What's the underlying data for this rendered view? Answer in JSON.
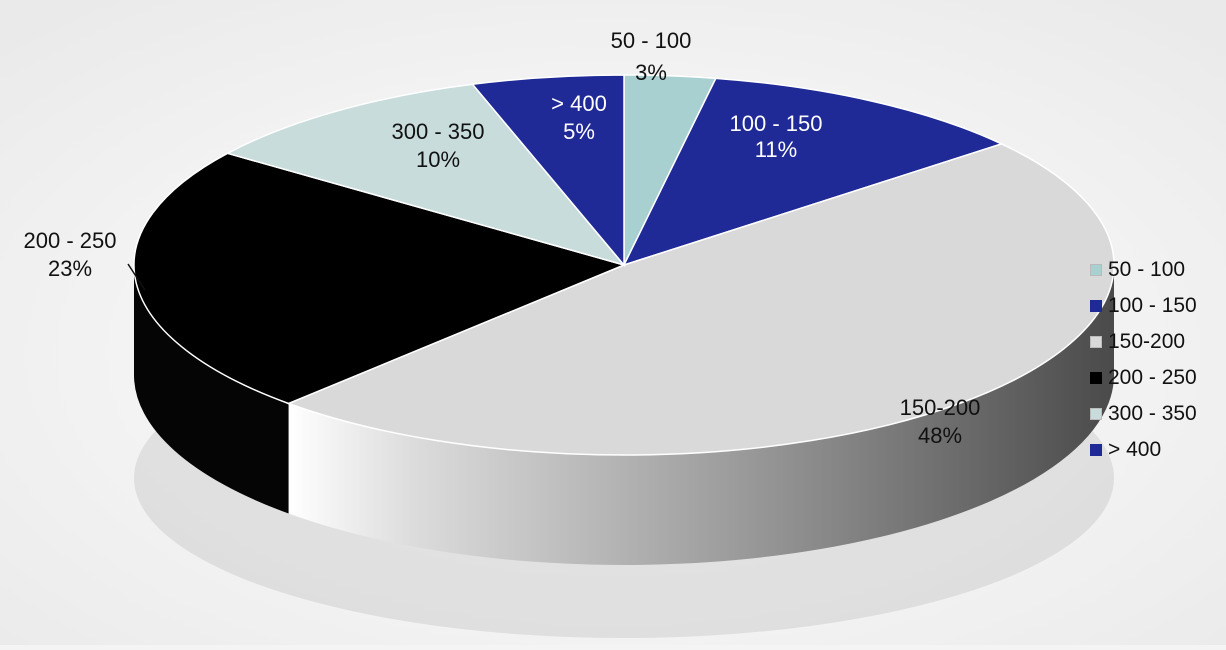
{
  "chart_data": {
    "type": "pie",
    "title": "",
    "three_d": true,
    "legend_position": "right",
    "slices": [
      {
        "label": "50 - 100",
        "percent_label": "3%",
        "value": 3,
        "color": "#a9d0d0"
      },
      {
        "label": "100 - 150",
        "percent_label": "11%",
        "value": 11,
        "color": "#1f2a96"
      },
      {
        "label": "150-200",
        "percent_label": "48%",
        "value": 48,
        "color": "#d9d9d9"
      },
      {
        "label": "200 - 250",
        "percent_label": "23%",
        "value": 23,
        "color": "#000000"
      },
      {
        "label": "300 - 350",
        "percent_label": "10%",
        "value": 10,
        "color": "#c8dcdc"
      },
      {
        "label": "> 400",
        "percent_label": "5%",
        "value": 5,
        "color": "#1f2a96"
      }
    ]
  }
}
